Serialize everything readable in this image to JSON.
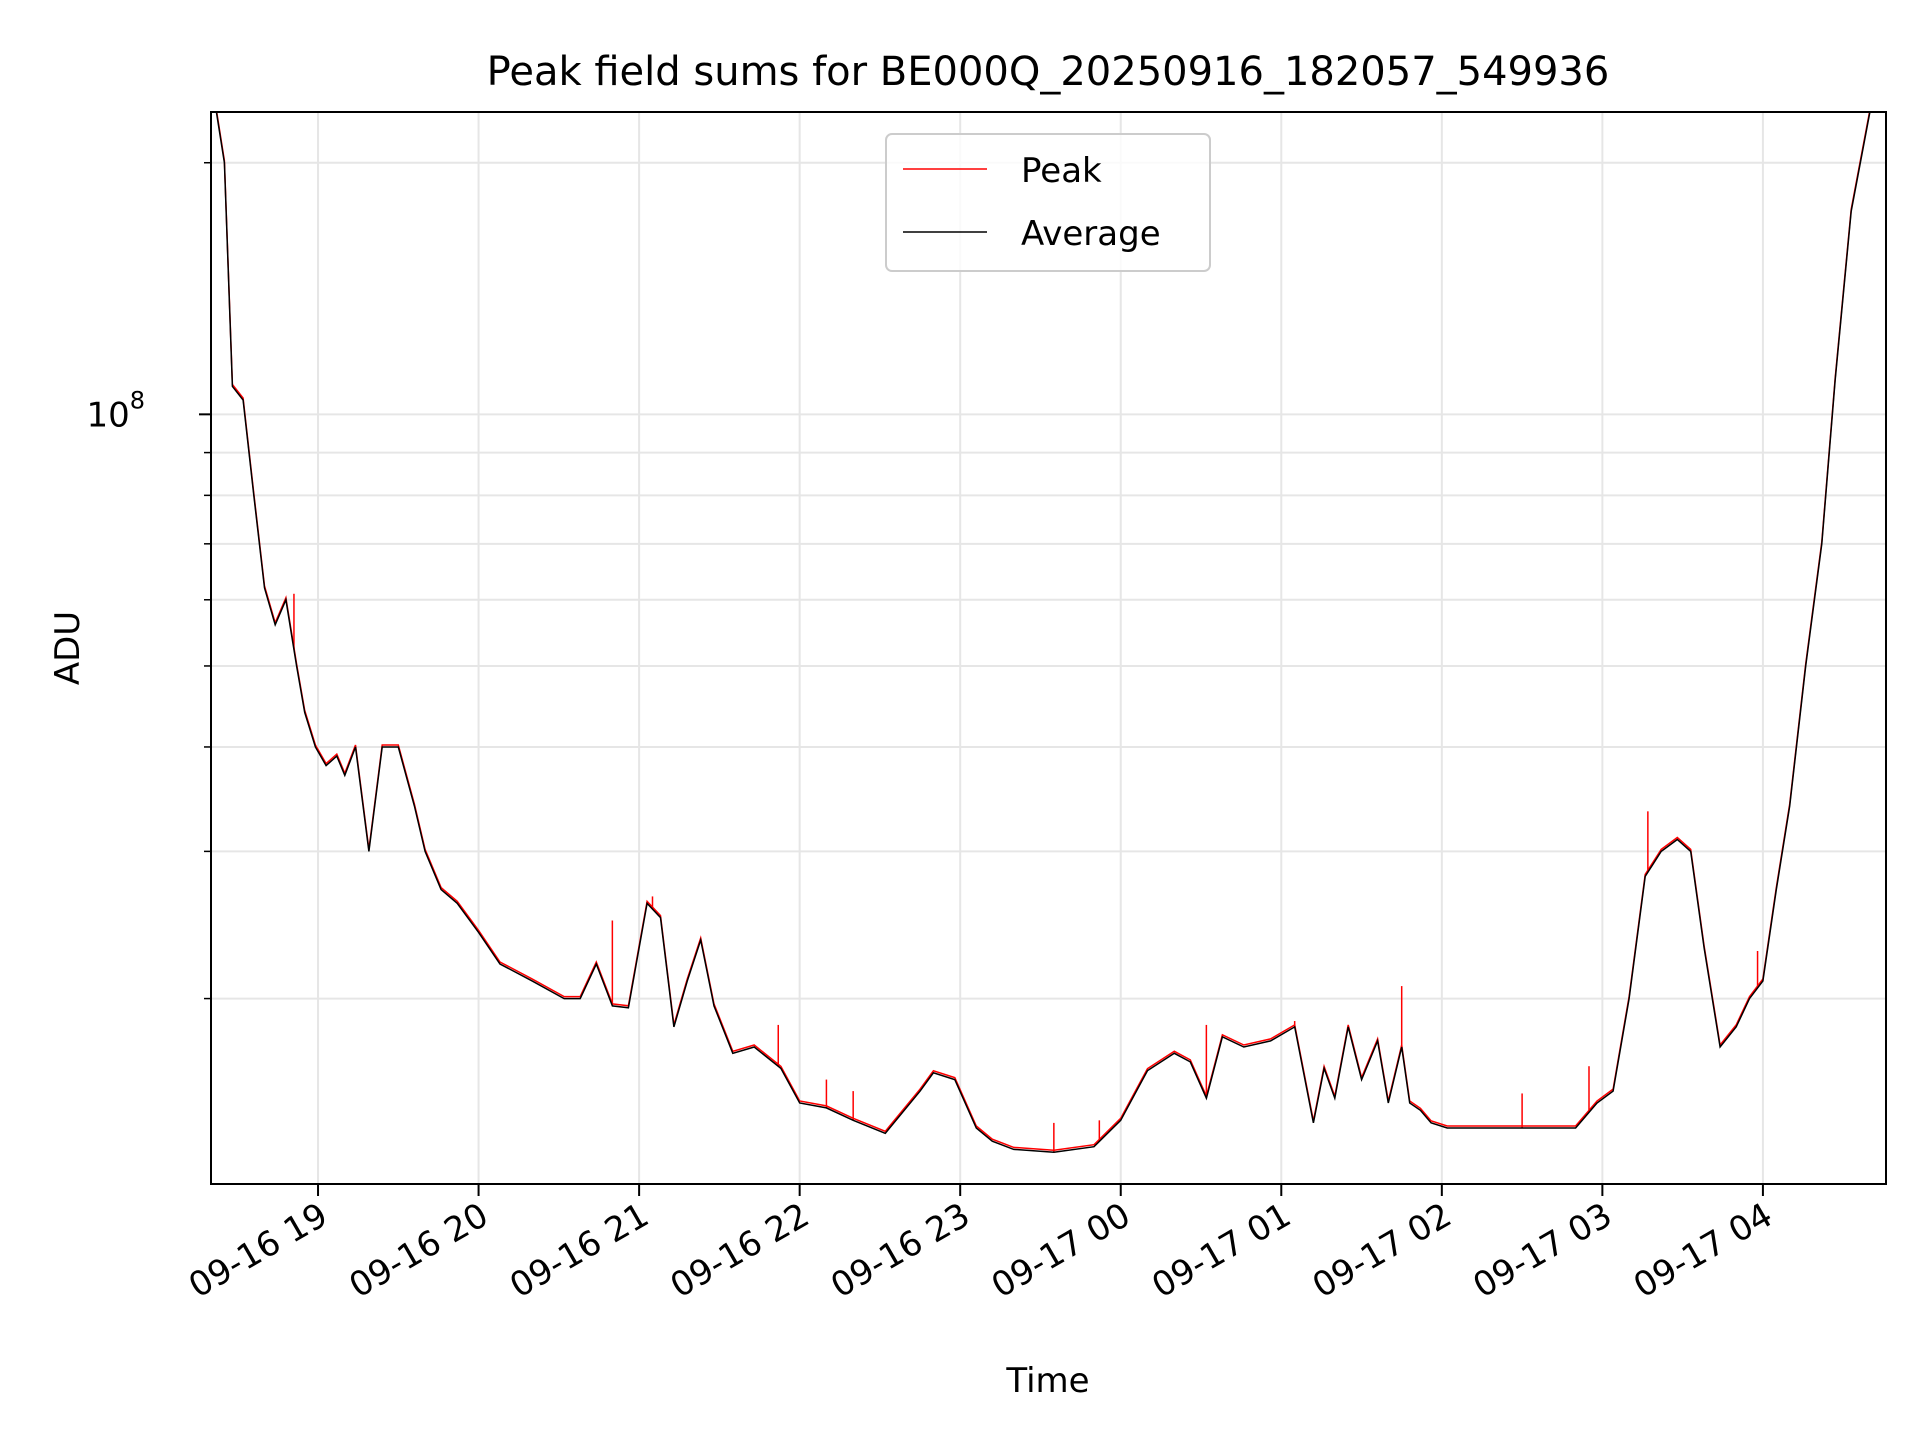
{
  "chart_data": {
    "type": "line",
    "title": "Peak field sums for BE000Q_20250916_182057_549936",
    "xlabel": "Time",
    "ylabel": "ADU",
    "yscale": "log",
    "xlim": [
      "09-16 18:20",
      "09-17 04:46"
    ],
    "ylim": [
      12000000,
      230000000
    ],
    "x_ticks": [
      "09-16 19",
      "09-16 20",
      "09-16 21",
      "09-16 22",
      "09-16 23",
      "09-17 00",
      "09-17 01",
      "09-17 02",
      "09-17 03",
      "09-17 04"
    ],
    "y_ticks": [
      {
        "value": 100000000,
        "base": "10",
        "exp": "8"
      }
    ],
    "grid": true,
    "legend_position": "upper-center",
    "series": [
      {
        "name": "Peak",
        "color": "#ff0000"
      },
      {
        "name": "Average",
        "color": "#000000"
      }
    ],
    "x": [
      "09-16 18:22",
      "09-16 18:25",
      "09-16 18:28",
      "09-16 18:32",
      "09-16 18:36",
      "09-16 18:40",
      "09-16 18:44",
      "09-16 18:48",
      "09-16 18:52",
      "09-16 18:55",
      "09-16 18:59",
      "09-16 19:03",
      "09-16 19:07",
      "09-16 19:10",
      "09-16 19:14",
      "09-16 19:19",
      "09-16 19:24",
      "09-16 19:30",
      "09-16 19:36",
      "09-16 19:40",
      "09-16 19:46",
      "09-16 19:52",
      "09-16 20:00",
      "09-16 20:08",
      "09-16 20:20",
      "09-16 20:32",
      "09-16 20:38",
      "09-16 20:44",
      "09-16 20:50",
      "09-16 20:56",
      "09-16 21:03",
      "09-16 21:08",
      "09-16 21:13",
      "09-16 21:18",
      "09-16 21:23",
      "09-16 21:28",
      "09-16 21:35",
      "09-16 21:43",
      "09-16 21:53",
      "09-16 22:00",
      "09-16 22:10",
      "09-16 22:20",
      "09-16 22:32",
      "09-16 22:45",
      "09-16 22:50",
      "09-16 22:58",
      "09-16 23:06",
      "09-16 23:12",
      "09-16 23:20",
      "09-16 23:35",
      "09-16 23:50",
      "09-17 00:00",
      "09-17 00:10",
      "09-17 00:20",
      "09-17 00:26",
      "09-17 00:32",
      "09-17 00:38",
      "09-17 00:46",
      "09-17 00:56",
      "09-17 01:05",
      "09-17 01:12",
      "09-17 01:16",
      "09-17 01:20",
      "09-17 01:25",
      "09-17 01:30",
      "09-17 01:36",
      "09-17 01:40",
      "09-17 01:45",
      "09-17 01:48",
      "09-17 01:52",
      "09-17 01:56",
      "09-17 02:02",
      "09-17 02:10",
      "09-17 02:20",
      "09-17 02:35",
      "09-17 02:50",
      "09-17 02:58",
      "09-17 03:04",
      "09-17 03:10",
      "09-17 03:16",
      "09-17 03:22",
      "09-17 03:28",
      "09-17 03:33",
      "09-17 03:38",
      "09-17 03:44",
      "09-17 03:50",
      "09-17 03:55",
      "09-17 04:00",
      "09-17 04:05",
      "09-17 04:10",
      "09-17 04:16",
      "09-17 04:22",
      "09-17 04:27",
      "09-17 04:33",
      "09-17 04:40"
    ],
    "average_values": [
      230000000,
      200000000,
      108000000,
      104000000,
      80000000,
      62000000,
      56000000,
      60000000,
      50000000,
      44000000,
      40000000,
      38000000,
      39000000,
      37000000,
      40000000,
      30000000,
      40000000,
      40000000,
      34000000,
      30000000,
      27000000,
      26000000,
      24000000,
      22000000,
      21000000,
      20000000,
      20000000,
      22000000,
      19600000,
      19500000,
      26000000,
      25000000,
      18500000,
      21000000,
      23500000,
      19600000,
      17200000,
      17500000,
      16500000,
      15000000,
      14800000,
      14300000,
      13800000,
      15500000,
      16300000,
      16000000,
      14000000,
      13500000,
      13200000,
      13100000,
      13300000,
      14300000,
      16400000,
      17200000,
      16800000,
      15200000,
      18000000,
      17500000,
      17800000,
      18500000,
      14200000,
      16500000,
      15200000,
      18500000,
      16000000,
      17800000,
      15000000,
      17500000,
      15000000,
      14700000,
      14200000,
      14000000,
      14000000,
      14000000,
      14000000,
      14000000,
      15000000,
      15500000,
      20000000,
      28000000,
      30000000,
      31000000,
      30000000,
      23000000,
      17500000,
      18500000,
      20000000,
      21000000,
      27000000,
      34000000,
      50000000,
      70000000,
      110000000,
      175000000,
      230000000
    ],
    "peak_spikes": [
      {
        "x": "09-16 18:51",
        "y": 61000000
      },
      {
        "x": "09-16 20:50",
        "y": 24800000
      },
      {
        "x": "09-16 21:05",
        "y": 26500000
      },
      {
        "x": "09-16 21:20",
        "y": 22000000
      },
      {
        "x": "09-16 21:52",
        "y": 18600000
      },
      {
        "x": "09-16 22:10",
        "y": 16000000
      },
      {
        "x": "09-16 22:20",
        "y": 15500000
      },
      {
        "x": "09-16 23:35",
        "y": 14200000
      },
      {
        "x": "09-16 23:52",
        "y": 14300000
      },
      {
        "x": "09-17 00:32",
        "y": 18600000
      },
      {
        "x": "09-17 01:05",
        "y": 18800000
      },
      {
        "x": "09-17 01:45",
        "y": 20700000
      },
      {
        "x": "09-17 02:30",
        "y": 15400000
      },
      {
        "x": "09-17 02:55",
        "y": 16600000
      },
      {
        "x": "09-17 03:17",
        "y": 33500000
      },
      {
        "x": "09-17 03:58",
        "y": 22800000
      }
    ]
  }
}
